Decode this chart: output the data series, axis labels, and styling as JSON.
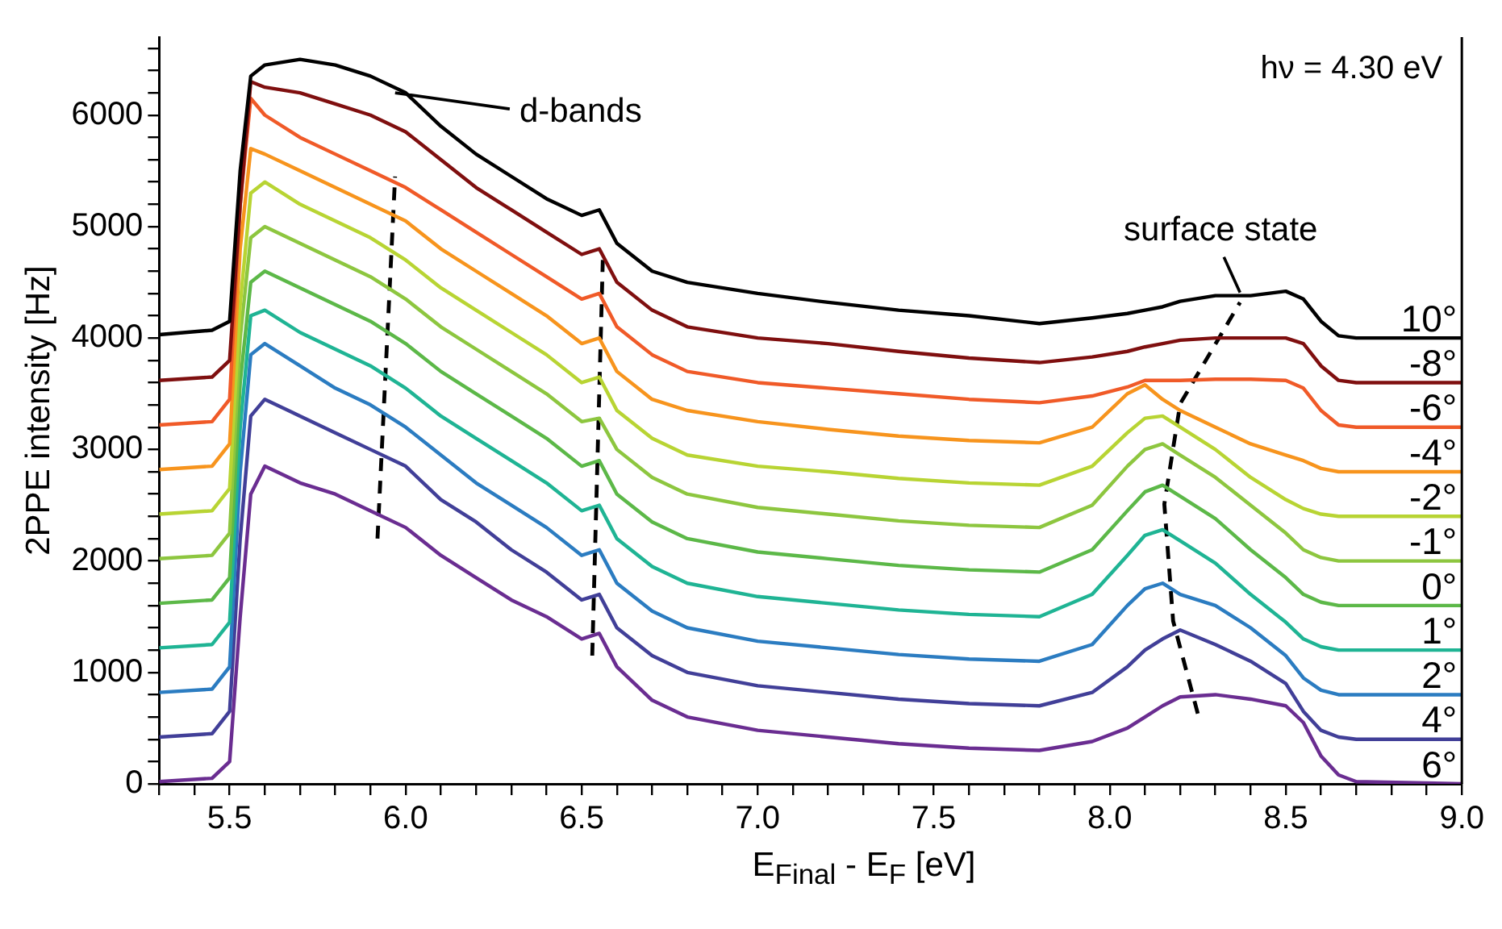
{
  "chart_data": {
    "type": "line",
    "xlabel": "E$_{Final}$ - E$_{F}$ [eV]",
    "ylabel": "2PPE intensity [Hz]",
    "annotations": [
      "hν = 4.30 eV",
      {
        "text": "d-bands",
        "x": 5.97,
        "y": 6200
      },
      {
        "text": "surface state",
        "x": 8.37,
        "y": 4350
      }
    ],
    "xlim": [
      5.3,
      9.0
    ],
    "xticks": [
      {
        "value": 5.3,
        "label": null
      },
      {
        "value": 5.4,
        "label": null
      },
      {
        "value": 5.5,
        "label": "5.5"
      },
      {
        "value": 5.6,
        "label": null
      },
      {
        "value": 5.7,
        "label": null
      },
      {
        "value": 5.8,
        "label": null
      },
      {
        "value": 5.9,
        "label": null
      },
      {
        "value": 6.0,
        "label": "6.0"
      },
      {
        "value": 6.1,
        "label": null
      },
      {
        "value": 6.2,
        "label": null
      },
      {
        "value": 6.3,
        "label": null
      },
      {
        "value": 6.4,
        "label": null
      },
      {
        "value": 6.5,
        "label": "6.5"
      },
      {
        "value": 6.6,
        "label": null
      },
      {
        "value": 6.7,
        "label": null
      },
      {
        "value": 6.8,
        "label": null
      },
      {
        "value": 6.9,
        "label": null
      },
      {
        "value": 7.0,
        "label": "7.0"
      },
      {
        "value": 7.1,
        "label": null
      },
      {
        "value": 7.2,
        "label": null
      },
      {
        "value": 7.3,
        "label": null
      },
      {
        "value": 7.4,
        "label": null
      },
      {
        "value": 7.5,
        "label": "7.5"
      },
      {
        "value": 7.6,
        "label": null
      },
      {
        "value": 7.7,
        "label": null
      },
      {
        "value": 7.8,
        "label": null
      },
      {
        "value": 7.9,
        "label": null
      },
      {
        "value": 8.0,
        "label": "8.0"
      },
      {
        "value": 8.1,
        "label": null
      },
      {
        "value": 8.2,
        "label": null
      },
      {
        "value": 8.3,
        "label": null
      },
      {
        "value": 8.4,
        "label": null
      },
      {
        "value": 8.5,
        "label": "8.5"
      },
      {
        "value": 8.6,
        "label": null
      },
      {
        "value": 8.7,
        "label": null
      },
      {
        "value": 8.8,
        "label": null
      },
      {
        "value": 8.9,
        "label": null
      },
      {
        "value": 9.0,
        "label": "9.0"
      }
    ],
    "ylim": [
      0,
      6700
    ],
    "yticks": [
      0,
      {
        "value": 200,
        "label": null
      },
      {
        "value": 400,
        "label": null
      },
      {
        "value": 600,
        "label": null
      },
      {
        "value": 800,
        "label": null
      },
      1000,
      {
        "value": 1200,
        "label": null
      },
      {
        "value": 1400,
        "label": null
      },
      {
        "value": 1600,
        "label": null
      },
      {
        "value": 1800,
        "label": null
      },
      2000,
      {
        "value": 2200,
        "label": null
      },
      {
        "value": 2400,
        "label": null
      },
      {
        "value": 2600,
        "label": null
      },
      {
        "value": 2800,
        "label": null
      },
      3000,
      {
        "value": 3200,
        "label": null
      },
      {
        "value": 3400,
        "label": null
      },
      {
        "value": 3600,
        "label": null
      },
      {
        "value": 3800,
        "label": null
      },
      4000,
      {
        "value": 4200,
        "label": null
      },
      {
        "value": 4400,
        "label": null
      },
      {
        "value": 4600,
        "label": null
      },
      {
        "value": 4800,
        "label": null
      },
      5000,
      {
        "value": 5200,
        "label": null
      },
      {
        "value": 5400,
        "label": null
      },
      {
        "value": 5600,
        "label": null
      },
      {
        "value": 5800,
        "label": null
      },
      6000,
      {
        "value": 6200,
        "label": null
      },
      {
        "value": 6400,
        "label": null
      },
      {
        "value": 6600,
        "label": null
      }
    ],
    "marker": "none",
    "x": [
      5.3,
      5.45,
      5.5,
      5.53,
      5.56,
      5.6,
      5.7,
      5.8,
      5.9,
      6.0,
      6.1,
      6.2,
      6.3,
      6.4,
      6.5,
      6.55,
      6.6,
      6.7,
      6.8,
      7.0,
      7.2,
      7.4,
      7.6,
      7.8,
      7.95,
      8.05,
      8.1,
      8.15,
      8.2,
      8.3,
      8.4,
      8.5,
      8.55,
      8.6,
      8.65,
      8.7,
      9.0
    ],
    "series": [
      {
        "name": "10°",
        "color": "#000000",
        "values": [
          4030,
          4070,
          4150,
          5500,
          6350,
          6450,
          6500,
          6450,
          6350,
          6200,
          5900,
          5650,
          5450,
          5250,
          5100,
          5150,
          4850,
          4600,
          4500,
          4400,
          4320,
          4250,
          4200,
          4130,
          4180,
          4220,
          4250,
          4280,
          4330,
          4380,
          4380,
          4420,
          4350,
          4150,
          4020,
          4000,
          4000
        ]
      },
      {
        "name": "-8°",
        "color": "#7f0f0f",
        "values": [
          3620,
          3650,
          3800,
          5200,
          6300,
          6250,
          6200,
          6100,
          6000,
          5850,
          5600,
          5350,
          5150,
          4950,
          4750,
          4800,
          4500,
          4250,
          4100,
          4000,
          3950,
          3880,
          3820,
          3780,
          3830,
          3880,
          3920,
          3950,
          3980,
          4000,
          4000,
          4000,
          3950,
          3750,
          3620,
          3600,
          3600
        ]
      },
      {
        "name": "-6°",
        "color": "#f05a28",
        "values": [
          3220,
          3250,
          3450,
          5200,
          6150,
          6000,
          5800,
          5650,
          5500,
          5350,
          5150,
          4950,
          4750,
          4550,
          4350,
          4400,
          4100,
          3850,
          3700,
          3600,
          3550,
          3500,
          3450,
          3420,
          3480,
          3560,
          3620,
          3620,
          3620,
          3630,
          3630,
          3620,
          3550,
          3350,
          3220,
          3200,
          3200
        ]
      },
      {
        "name": "-4°",
        "color": "#f7941d",
        "values": [
          2820,
          2850,
          3050,
          4800,
          5700,
          5650,
          5500,
          5350,
          5200,
          5050,
          4800,
          4600,
          4400,
          4200,
          3950,
          4000,
          3700,
          3450,
          3350,
          3250,
          3180,
          3120,
          3080,
          3060,
          3200,
          3500,
          3580,
          3450,
          3350,
          3200,
          3050,
          2950,
          2900,
          2830,
          2800,
          2800,
          2800
        ]
      },
      {
        "name": "-2°",
        "color": "#b8d433",
        "values": [
          2420,
          2450,
          2650,
          4300,
          5300,
          5400,
          5200,
          5050,
          4900,
          4700,
          4450,
          4250,
          4050,
          3850,
          3600,
          3650,
          3350,
          3100,
          2950,
          2850,
          2800,
          2740,
          2700,
          2680,
          2850,
          3150,
          3280,
          3300,
          3200,
          3000,
          2750,
          2550,
          2470,
          2420,
          2400,
          2400,
          2400
        ]
      },
      {
        "name": "-1°",
        "color": "#8dc63f",
        "values": [
          2020,
          2050,
          2250,
          4000,
          4900,
          5000,
          4850,
          4700,
          4550,
          4350,
          4100,
          3900,
          3700,
          3500,
          3250,
          3280,
          3000,
          2750,
          2600,
          2480,
          2420,
          2360,
          2320,
          2300,
          2500,
          2850,
          3000,
          3050,
          2950,
          2750,
          2500,
          2250,
          2100,
          2030,
          2000,
          2000,
          2000
        ]
      },
      {
        "name": "0°",
        "color": "#5cb848",
        "values": [
          1620,
          1650,
          1850,
          3600,
          4500,
          4600,
          4450,
          4300,
          4150,
          3950,
          3700,
          3500,
          3300,
          3100,
          2850,
          2900,
          2600,
          2350,
          2200,
          2080,
          2020,
          1960,
          1920,
          1900,
          2100,
          2450,
          2620,
          2680,
          2580,
          2380,
          2100,
          1850,
          1700,
          1630,
          1600,
          1600,
          1600
        ]
      },
      {
        "name": "1°",
        "color": "#1fb494",
        "values": [
          1220,
          1250,
          1450,
          3200,
          4200,
          4250,
          4050,
          3900,
          3750,
          3550,
          3300,
          3100,
          2900,
          2700,
          2450,
          2500,
          2200,
          1950,
          1800,
          1680,
          1620,
          1560,
          1520,
          1500,
          1700,
          2050,
          2230,
          2280,
          2180,
          1980,
          1700,
          1450,
          1300,
          1230,
          1200,
          1200,
          1200
        ]
      },
      {
        "name": "2°",
        "color": "#2b7cc1",
        "values": [
          820,
          850,
          1050,
          2800,
          3850,
          3950,
          3750,
          3550,
          3400,
          3200,
          2950,
          2700,
          2500,
          2300,
          2050,
          2100,
          1800,
          1550,
          1400,
          1280,
          1220,
          1160,
          1120,
          1100,
          1250,
          1600,
          1750,
          1800,
          1700,
          1600,
          1400,
          1150,
          950,
          840,
          800,
          800,
          800
        ]
      },
      {
        "name": "4°",
        "color": "#413f98",
        "values": [
          420,
          450,
          650,
          2200,
          3300,
          3450,
          3300,
          3150,
          3000,
          2850,
          2550,
          2350,
          2100,
          1900,
          1650,
          1700,
          1400,
          1150,
          1000,
          880,
          820,
          760,
          720,
          700,
          820,
          1050,
          1200,
          1300,
          1380,
          1250,
          1100,
          900,
          650,
          480,
          420,
          400,
          400
        ]
      },
      {
        "name": "6°",
        "color": "#6a2d91",
        "values": [
          20,
          50,
          200,
          1500,
          2600,
          2850,
          2700,
          2600,
          2450,
          2300,
          2050,
          1850,
          1650,
          1500,
          1300,
          1350,
          1050,
          750,
          600,
          480,
          420,
          360,
          320,
          300,
          380,
          500,
          600,
          700,
          780,
          800,
          760,
          700,
          550,
          250,
          80,
          20,
          0
        ]
      },
      {
        "type": "line",
        "color": "#000000",
        "line_style": "dashed",
        "x": [
          5.92,
          5.97
        ],
        "values": [
          2200,
          5450
        ]
      },
      {
        "type": "line",
        "color": "#000000",
        "line_style": "dashed",
        "x": [
          6.53,
          6.56
        ],
        "values": [
          1150,
          4700
        ]
      },
      {
        "type": "line",
        "color": "#000000",
        "line_style": "dashed",
        "x": [
          8.25,
          8.18,
          8.155,
          8.2,
          8.37
        ],
        "values": [
          630,
          1460,
          2510,
          3410,
          4320
        ]
      }
    ]
  }
}
